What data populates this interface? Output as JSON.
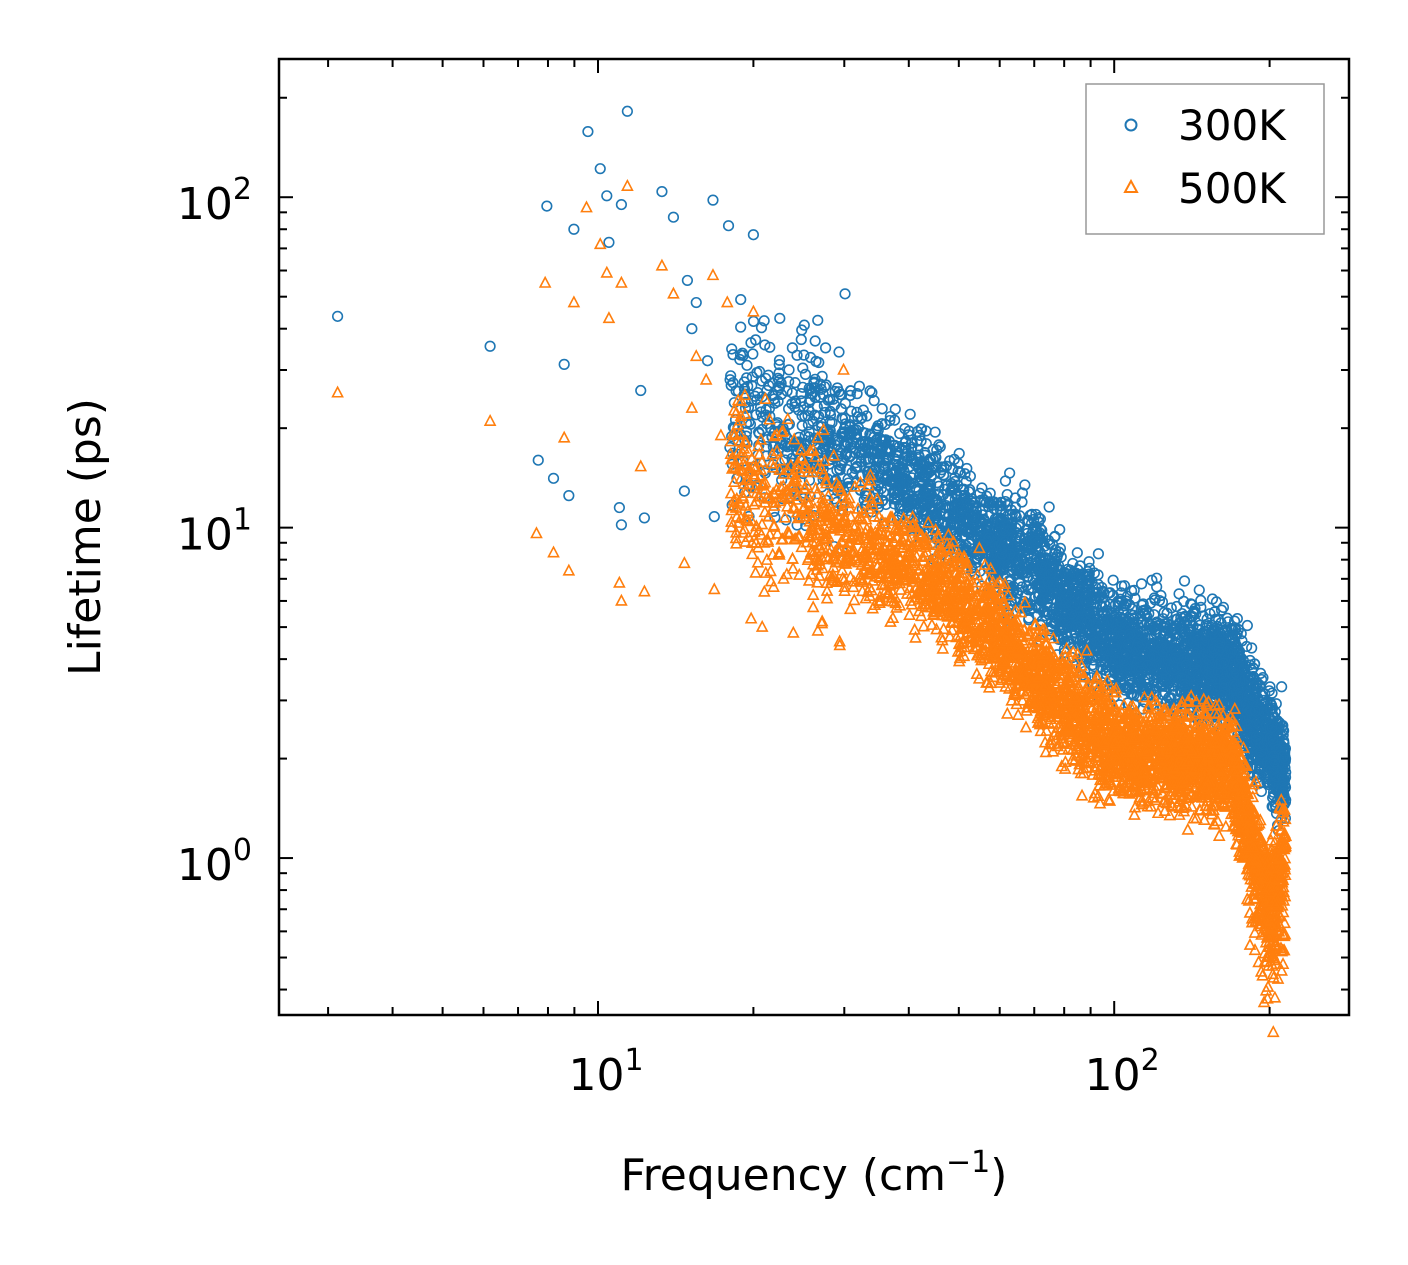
{
  "chart_data": {
    "type": "scatter",
    "title": "",
    "xlabel": "Frequency (cm",
    "xlabel_sup": "−1",
    "xlabel_end": ")",
    "ylabel": "Lifetime (ps)",
    "xscale": "log",
    "yscale": "log",
    "xlim": [
      2.41,
      285
    ],
    "ylim": [
      0.335,
      262
    ],
    "x_ticks": [
      {
        "value": 10,
        "base": "10",
        "exp": "1"
      },
      {
        "value": 100,
        "base": "10",
        "exp": "2"
      }
    ],
    "y_ticks": [
      {
        "value": 1,
        "base": "10",
        "exp": "0"
      },
      {
        "value": 10,
        "base": "10",
        "exp": "1"
      },
      {
        "value": 100,
        "base": "10",
        "exp": "2"
      }
    ],
    "grid": false,
    "legend_position": "top-right",
    "series": [
      {
        "name": "300K",
        "color": "#1f77b4",
        "marker": "circle",
        "points": [
          [
            3.13,
            43.6
          ],
          [
            6.18,
            35.4
          ],
          [
            7.66,
            16.0
          ],
          [
            8.2,
            14.1
          ],
          [
            8.78,
            12.5
          ],
          [
            7.96,
            94
          ],
          [
            8.98,
            80
          ],
          [
            8.6,
            31.2
          ],
          [
            9.56,
            158
          ],
          [
            10.1,
            122
          ],
          [
            10.4,
            101
          ],
          [
            10.5,
            73
          ],
          [
            11.1,
            95
          ],
          [
            11.4,
            182
          ],
          [
            11.0,
            11.5
          ],
          [
            11.1,
            10.2
          ],
          [
            12.3,
            10.7
          ],
          [
            12.1,
            26
          ],
          [
            13.3,
            104
          ],
          [
            14.0,
            87
          ],
          [
            14.9,
            56
          ],
          [
            14.7,
            12.9
          ],
          [
            16.7,
            98
          ],
          [
            17.9,
            82
          ],
          [
            20.0,
            77
          ],
          [
            16.8,
            10.8
          ],
          [
            30.1,
            51
          ],
          [
            15.5,
            48
          ],
          [
            18.9,
            49
          ],
          [
            15.2,
            40
          ],
          [
            16.3,
            32
          ],
          [
            20.2,
            37
          ],
          [
            22.5,
            43
          ],
          [
            25.1,
            41
          ],
          [
            23.8,
            35
          ],
          [
            27.6,
            35
          ],
          [
            29.3,
            34
          ]
        ],
        "dense_band": {
          "freq": [
            18,
            25,
            30,
            40,
            50,
            60,
            70,
            80,
            100,
            130,
            150,
            170,
            180,
            200,
            215
          ],
          "center_lifetime": [
            22,
            20,
            18,
            14,
            11,
            8.8,
            7.8,
            6.0,
            4.5,
            4.0,
            3.9,
            3.7,
            3.0,
            2.1,
            1.8
          ],
          "spread_dex": 0.16
        }
      },
      {
        "name": "500K",
        "color": "#ff7f0e",
        "marker": "triangle",
        "points": [
          [
            3.13,
            25.6
          ],
          [
            6.18,
            21
          ],
          [
            7.6,
            9.6
          ],
          [
            8.2,
            8.4
          ],
          [
            8.78,
            7.4
          ],
          [
            7.9,
            55
          ],
          [
            8.98,
            48
          ],
          [
            8.6,
            18.7
          ],
          [
            9.5,
            93
          ],
          [
            10.1,
            72
          ],
          [
            10.4,
            59
          ],
          [
            10.5,
            43
          ],
          [
            11.1,
            55
          ],
          [
            11.4,
            108
          ],
          [
            11.0,
            6.8
          ],
          [
            11.1,
            6.0
          ],
          [
            12.3,
            6.4
          ],
          [
            12.1,
            15.3
          ],
          [
            13.3,
            62
          ],
          [
            14.0,
            51
          ],
          [
            16.7,
            58
          ],
          [
            14.7,
            7.8
          ],
          [
            17.8,
            48
          ],
          [
            20.0,
            45
          ],
          [
            15.5,
            33
          ],
          [
            16.2,
            28
          ],
          [
            15.2,
            23
          ],
          [
            17.3,
            19
          ],
          [
            16.8,
            6.5
          ],
          [
            19.8,
            5.3
          ],
          [
            20.8,
            5.0
          ],
          [
            23.9,
            4.8
          ],
          [
            29.4,
            4.4
          ],
          [
            19.9,
            8.3
          ],
          [
            29.9,
            30
          ]
        ],
        "dense_band": {
          "freq": [
            18,
            25,
            30,
            40,
            50,
            60,
            70,
            80,
            100,
            130,
            150,
            170,
            180,
            200,
            215
          ],
          "center_lifetime": [
            14,
            11,
            9,
            7.8,
            6.0,
            4.6,
            3.6,
            2.9,
            2.2,
            2.0,
            2.0,
            1.8,
            1.3,
            0.75,
            1.1
          ],
          "spread_dex": 0.16
        }
      }
    ]
  }
}
